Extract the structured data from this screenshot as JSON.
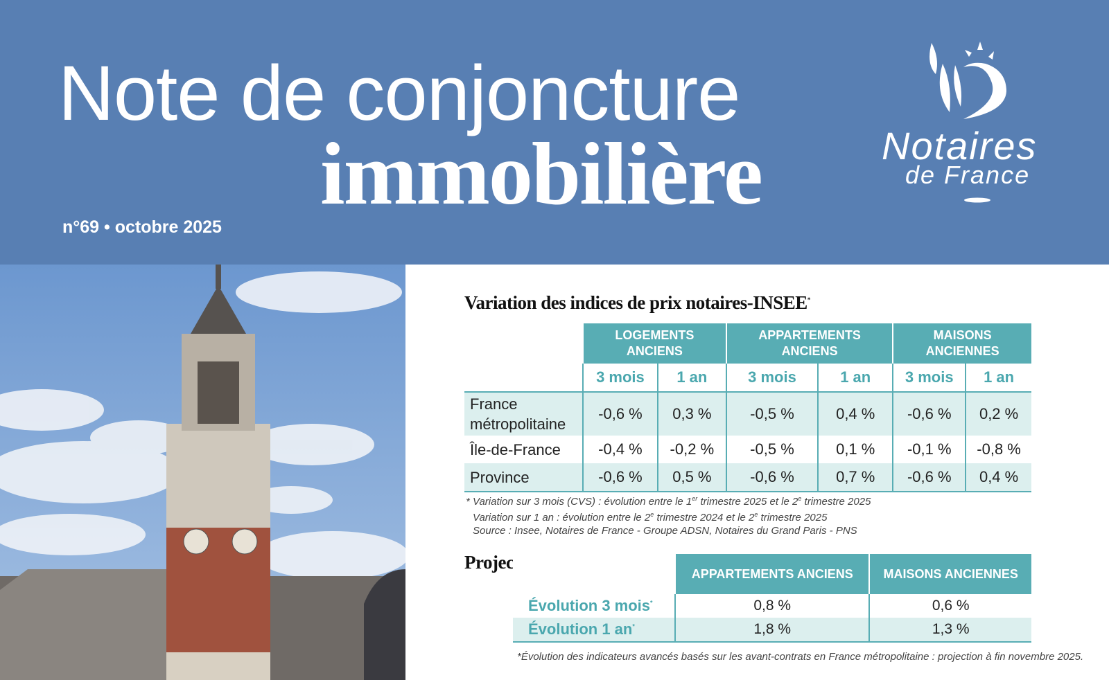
{
  "header": {
    "title_line1": "Note de conjoncture",
    "title_line2": "immobilière",
    "issue": "n°69 • octobre 2025",
    "logo_line1": "Notaires",
    "logo_line2": "de France"
  },
  "price_table": {
    "title": "Variation des indices de prix notaires-INSEE",
    "title_mark": "*",
    "groups": [
      "LOGEMENTS ANCIENS",
      "APPARTEMENTS ANCIENS",
      "MAISONS ANCIENNES"
    ],
    "subheaders": [
      "3 mois",
      "1 an",
      "3 mois",
      "1 an",
      "3 mois",
      "1 an"
    ],
    "rows": [
      {
        "label": "France métropolitaine",
        "values": [
          "-0,6 %",
          "0,3 %",
          "-0,5 %",
          "0,4 %",
          "-0,6 %",
          "0,2 %"
        ]
      },
      {
        "label": "Île-de-France",
        "values": [
          "-0,4 %",
          "-0,2 %",
          "-0,5 %",
          "0,1 %",
          "-0,1 %",
          "-0,8 %"
        ]
      },
      {
        "label": "Province",
        "values": [
          "-0,6 %",
          "0,5 %",
          "-0,6 %",
          "0,7 %",
          "-0,6 %",
          "0,4 %"
        ]
      }
    ],
    "notes": [
      [
        "* Variation sur 3 mois (CVS) : évolution entre le 1",
        "er",
        " trimestre 2025 et le 2",
        "e",
        " trimestre 2025"
      ],
      [
        "Variation sur 1 an : évolution entre le 2",
        "e",
        " trimestre 2024 et le 2",
        "e",
        " trimestre 2025"
      ],
      [
        "Source : Insee, Notaires de France - Groupe ADSN, Notaires du Grand Paris - PNS"
      ]
    ]
  },
  "projections": {
    "title": "Projections",
    "columns": [
      "APPARTEMENTS ANCIENS",
      "MAISONS ANCIENNES"
    ],
    "rows": [
      {
        "label": "Évolution 3 mois",
        "mark": "*",
        "values": [
          "0,8 %",
          "0,6 %"
        ]
      },
      {
        "label": "Évolution 1 an",
        "mark": "*",
        "values": [
          "1,8 %",
          "1,3 %"
        ]
      }
    ],
    "note": "*Évolution des indicateurs avancés basés sur les avant-contrats en France métropolitaine : projection à fin novembre 2025."
  }
}
